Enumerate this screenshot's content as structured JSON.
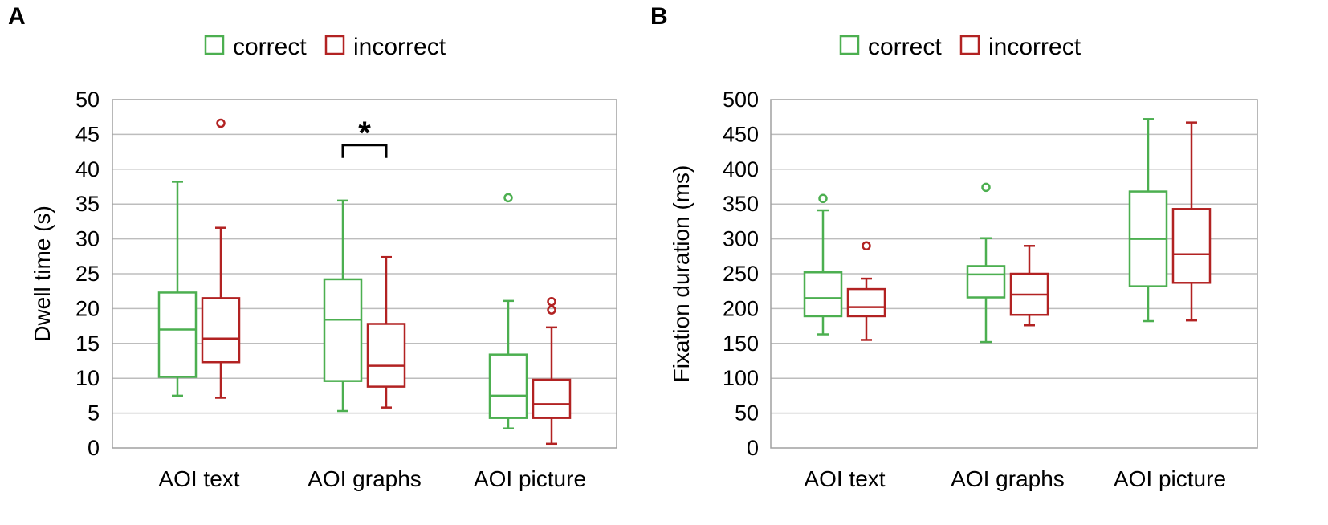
{
  "colors": {
    "correct": "#4caf50",
    "incorrect": "#b22222",
    "grid": "#bdbdbd",
    "frame": "#a0a0a0"
  },
  "chart_data": [
    {
      "panel": "A",
      "type": "box",
      "ylabel": "Dwell time (s)",
      "ylim": [
        0,
        50
      ],
      "yticks": [
        0,
        5,
        10,
        15,
        20,
        25,
        30,
        35,
        40,
        45,
        50
      ],
      "grid": true,
      "legend": [
        "correct",
        "incorrect"
      ],
      "categories": [
        "AOI text",
        "AOI graphs",
        "AOI picture"
      ],
      "series": [
        {
          "name": "correct",
          "boxes": [
            {
              "min": 7.5,
              "q1": 10.2,
              "median": 17.0,
              "q3": 22.3,
              "max": 38.2,
              "outliers": []
            },
            {
              "min": 5.3,
              "q1": 9.6,
              "median": 18.4,
              "q3": 24.2,
              "max": 35.5,
              "outliers": []
            },
            {
              "min": 2.8,
              "q1": 4.3,
              "median": 7.5,
              "q3": 13.4,
              "max": 21.1,
              "outliers": [
                35.9
              ]
            }
          ]
        },
        {
          "name": "incorrect",
          "boxes": [
            {
              "min": 7.2,
              "q1": 12.3,
              "median": 15.7,
              "q3": 21.5,
              "max": 31.6,
              "outliers": [
                46.6
              ]
            },
            {
              "min": 5.8,
              "q1": 8.8,
              "median": 11.8,
              "q3": 17.8,
              "max": 27.4,
              "outliers": []
            },
            {
              "min": 0.6,
              "q1": 4.3,
              "median": 6.3,
              "q3": 9.8,
              "max": 17.3,
              "outliers": [
                19.8,
                21.0
              ]
            }
          ]
        }
      ],
      "annotations": [
        {
          "category": "AOI graphs",
          "text": "*",
          "level": 40.0
        }
      ]
    },
    {
      "panel": "B",
      "type": "box",
      "ylabel": "Fixation duration (ms)",
      "ylim": [
        0,
        500
      ],
      "yticks": [
        0,
        50,
        100,
        150,
        200,
        250,
        300,
        350,
        400,
        450,
        500
      ],
      "grid": true,
      "legend": [
        "correct",
        "incorrect"
      ],
      "categories": [
        "AOI text",
        "AOI graphs",
        "AOI picture"
      ],
      "series": [
        {
          "name": "correct",
          "boxes": [
            {
              "min": 163,
              "q1": 189,
              "median": 215,
              "q3": 252,
              "max": 341,
              "outliers": [
                358
              ]
            },
            {
              "min": 152,
              "q1": 216,
              "median": 249,
              "q3": 261,
              "max": 301,
              "outliers": [
                374
              ]
            },
            {
              "min": 182,
              "q1": 232,
              "median": 300,
              "q3": 368,
              "max": 472,
              "outliers": []
            }
          ]
        },
        {
          "name": "incorrect",
          "boxes": [
            {
              "min": 155,
              "q1": 189,
              "median": 202,
              "q3": 228,
              "max": 243,
              "outliers": [
                290
              ]
            },
            {
              "min": 176,
              "q1": 191,
              "median": 220,
              "q3": 250,
              "max": 290,
              "outliers": []
            },
            {
              "min": 183,
              "q1": 237,
              "median": 278,
              "q3": 343,
              "max": 467,
              "outliers": []
            }
          ]
        }
      ],
      "annotations": []
    }
  ]
}
